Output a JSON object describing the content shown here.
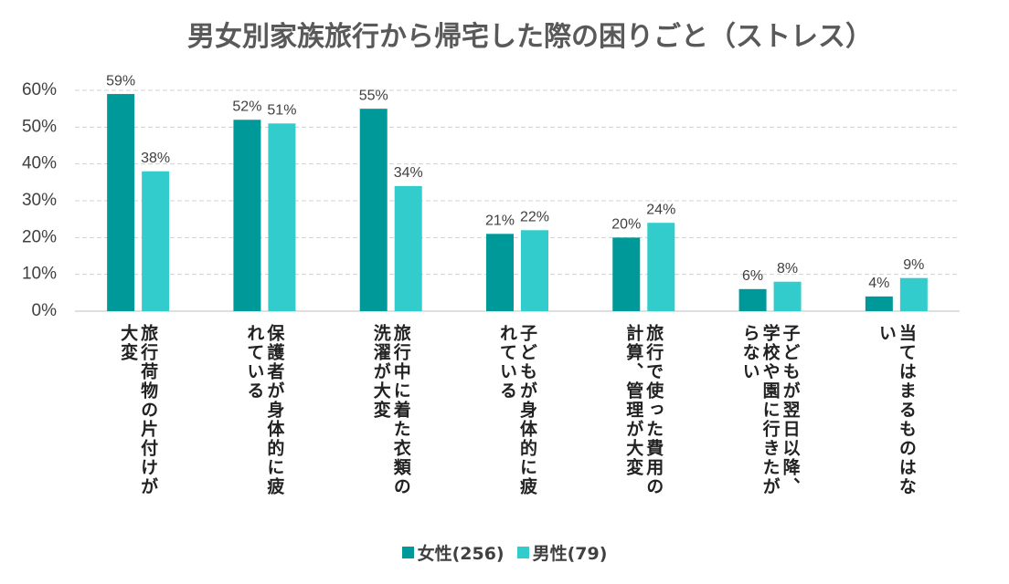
{
  "chart_data": {
    "type": "bar",
    "title": "男女別家族旅行から帰宅した際の困りごと（ストレス）",
    "categories": [
      "旅行荷物の片付けが大変",
      "保護者が身体的に疲れている",
      "旅行中に着た衣類の洗濯が大変",
      "子どもが身体的に疲れている",
      "旅行で使った費用の計算、管理が大変",
      "子どもが翌日以降、学校や園に行きたがらない",
      "当てはまるものはない"
    ],
    "series": [
      {
        "name": "女性(256)",
        "color": "#009999",
        "values": [
          59,
          52,
          55,
          21,
          20,
          6,
          4
        ],
        "value_labels": [
          "59%",
          "52%",
          "55%",
          "21%",
          "20%",
          "6%",
          "4%"
        ]
      },
      {
        "name": "男性(79)",
        "color": "#33cccc",
        "values": [
          38,
          51,
          34,
          22,
          24,
          8,
          9
        ],
        "value_labels": [
          "38%",
          "51%",
          "34%",
          "22%",
          "24%",
          "8%",
          "9%"
        ]
      }
    ],
    "ylim": [
      0,
      60
    ],
    "yticks": [
      {
        "value": 0,
        "label": "0%"
      },
      {
        "value": 10,
        "label": "10%"
      },
      {
        "value": 20,
        "label": "20%"
      },
      {
        "value": 30,
        "label": "30%"
      },
      {
        "value": 40,
        "label": "40%"
      },
      {
        "value": 50,
        "label": "50%"
      },
      {
        "value": 60,
        "label": "60%"
      }
    ],
    "grid": true,
    "legend": "bottom"
  }
}
